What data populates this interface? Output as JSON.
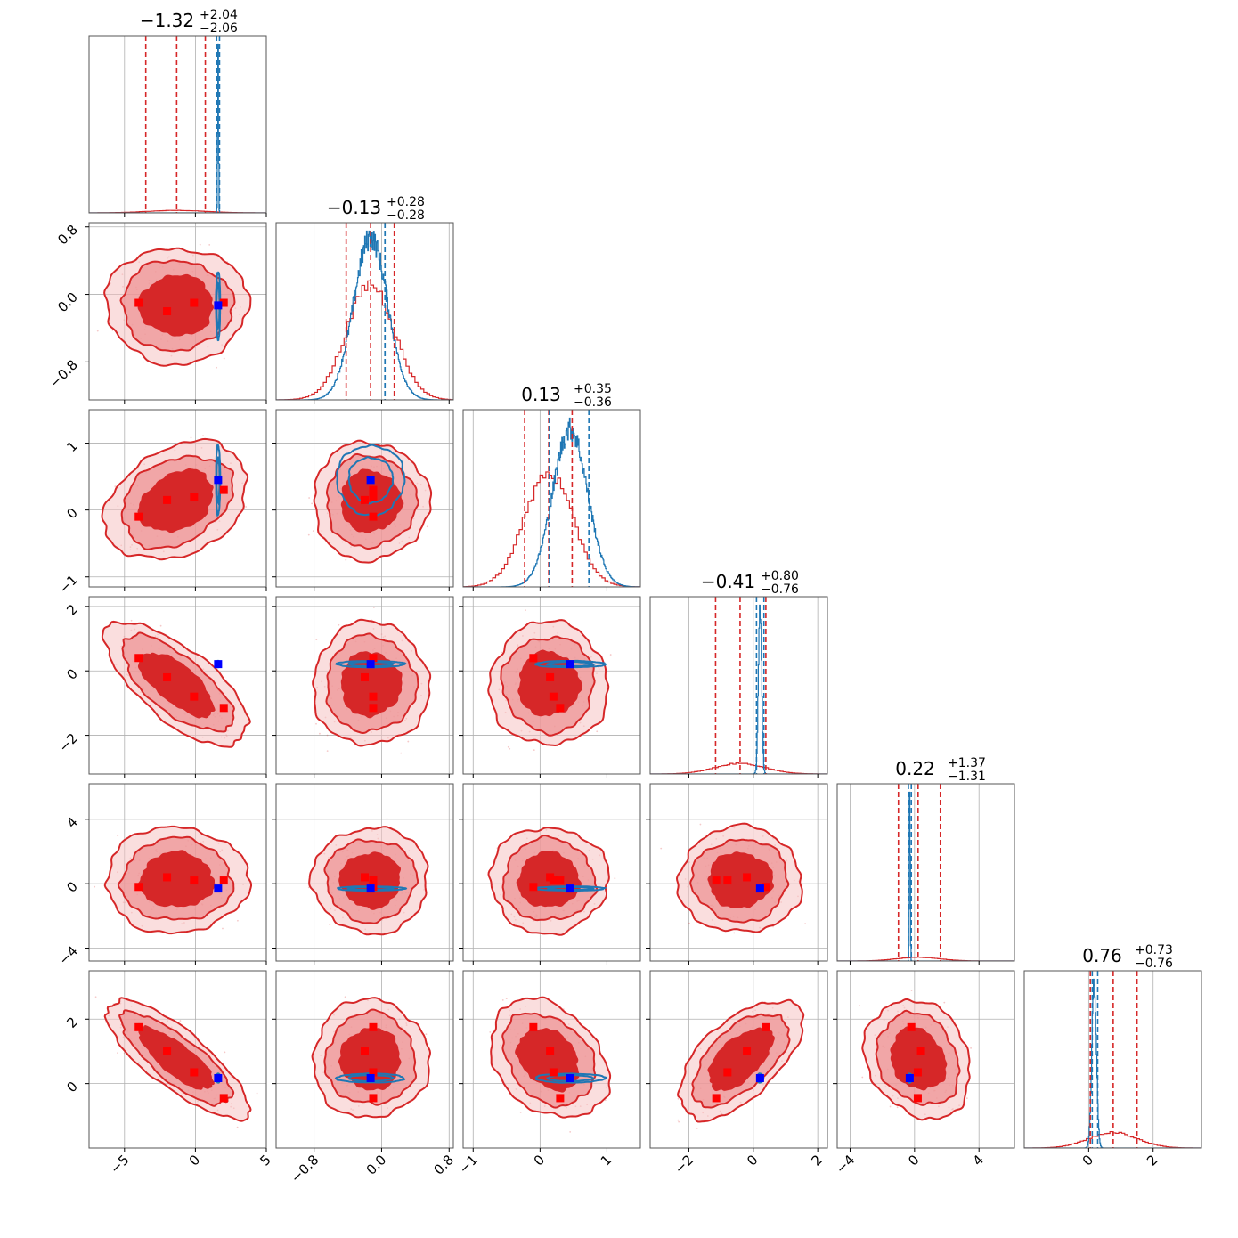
{
  "colors": {
    "red": "#d62728",
    "red_fill_outer": "#f5c2c3",
    "red_fill_mid": "#ec8e90",
    "red_fill_inner": "#d62728",
    "blue": "#1f77b4",
    "grid": "#b0b0b0",
    "marker_red": "#ff0000",
    "marker_blue": "#0000ff"
  },
  "chart_data": {
    "type": "corner",
    "n_params": 6,
    "titles": [
      {
        "median": "−1.32",
        "plus": "+2.04",
        "minus": "−2.06"
      },
      {
        "median": "−0.13",
        "plus": "+0.28",
        "minus": "−0.28"
      },
      {
        "median": "0.13",
        "plus": "+0.35",
        "minus": "−0.36"
      },
      {
        "median": "−0.41",
        "plus": "+0.80",
        "minus": "−0.76"
      },
      {
        "median": "0.22",
        "plus": "+1.37",
        "minus": "−1.31"
      },
      {
        "median": "0.76",
        "plus": "+0.73",
        "minus": "−0.76"
      }
    ],
    "ranges": [
      [
        -7.5,
        5.0
      ],
      [
        -1.25,
        0.85
      ],
      [
        -1.15,
        1.5
      ],
      [
        -3.2,
        2.3
      ],
      [
        -4.8,
        6.2
      ],
      [
        -2.0,
        3.5
      ]
    ],
    "ticks": [
      {
        "values": [
          -5,
          0,
          5
        ],
        "labels": [
          "−5",
          "0",
          "5"
        ]
      },
      {
        "values": [
          -0.8,
          0.0,
          0.8
        ],
        "labels": [
          "−0.8",
          "0.0",
          "0.8"
        ]
      },
      {
        "values": [
          -1,
          0,
          1
        ],
        "labels": [
          "−1",
          "0",
          "1"
        ]
      },
      {
        "values": [
          -2,
          0,
          2
        ],
        "labels": [
          "−2",
          "0",
          "2"
        ]
      },
      {
        "values": [
          -4,
          0,
          4
        ],
        "labels": [
          "−4",
          "0",
          "4"
        ]
      },
      {
        "values": [
          0,
          2
        ],
        "labels": [
          "0",
          "2"
        ]
      }
    ],
    "red_quantiles": [
      [
        -3.5,
        0.7
      ],
      [
        -0.42,
        0.15
      ],
      [
        -0.23,
        0.48
      ],
      [
        -1.17,
        0.39
      ],
      [
        -1.0,
        1.6
      ],
      [
        0.05,
        1.5
      ]
    ],
    "blue_quantiles": [
      [
        1.5,
        1.7
      ],
      [
        0.04,
        0.04
      ],
      [
        0.14,
        0.73
      ],
      [
        0.1,
        0.33
      ],
      [
        -0.38,
        -0.2
      ],
      [
        0.11,
        0.28
      ]
    ],
    "red_marginal_center": [
      -1.32,
      -0.13,
      0.13,
      -0.41,
      0.22,
      0.76
    ],
    "red_marginal_sigma": [
      2.05,
      0.28,
      0.36,
      0.78,
      1.34,
      0.75
    ],
    "blue_marginal_center": [
      1.6,
      -0.13,
      0.45,
      0.21,
      -0.3,
      0.17
    ],
    "blue_marginal_sigma": [
      0.03,
      0.2,
      0.26,
      0.05,
      0.03,
      0.07
    ],
    "correlations": [
      [
        1,
        0,
        0.3,
        -0.7,
        0,
        -0.8
      ],
      [
        0,
        1,
        0,
        0,
        0,
        0
      ],
      [
        0.3,
        0,
        1,
        0,
        0,
        -0.3
      ],
      [
        -0.7,
        0,
        0,
        1,
        0,
        0.6
      ],
      [
        0,
        0,
        0,
        0,
        1,
        -0.2
      ],
      [
        -0.8,
        0,
        -0.3,
        0.6,
        -0.2,
        1
      ]
    ],
    "red_points": [
      [
        -4.0,
        -0.1,
        -0.1,
        0.4,
        -0.2,
        1.75
      ],
      [
        -2.0,
        -0.2,
        0.15,
        -0.2,
        0.4,
        1.0
      ],
      [
        -0.1,
        -0.1,
        0.2,
        -0.8,
        0.2,
        0.35
      ],
      [
        2.0,
        -0.1,
        0.3,
        -1.15,
        0.2,
        -0.45
      ]
    ],
    "blue_point": [
      1.6,
      -0.13,
      0.45,
      0.21,
      -0.3,
      0.17
    ]
  }
}
